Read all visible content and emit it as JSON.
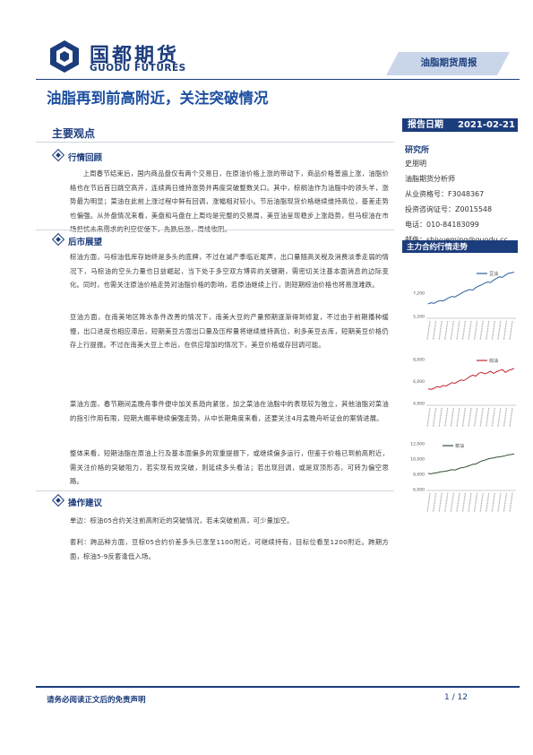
{
  "header": {
    "logo_cn": "国都期货",
    "logo_en": "GUODU FUTURES",
    "report_type": "油脂期货周报",
    "title": "油脂再到前高附近，关注突破情况",
    "date_label": "报告日期",
    "date_value": "2021-02-21"
  },
  "key_points": {
    "heading": "主要观点",
    "sections": [
      {
        "heading": "行情回顾",
        "paragraphs": [
          "上周春节结束后，国内商品盘仅有两个交易日，在原油价格上涨的带动下，商品价格普遍上涨，油脂价格也在节后首日跳空高开，连续两日维持涨势并再度突破整数关口。其中，棕榈油作为油脂中的领头羊，涨势最为明显；菜油在此前上涨过程中鲜有回调，涨幅相对较小。节后油脂现货价格继续维持高位，基差走势也偏强。从外盘情况来看，美盘和马盘在上周均是完整的交易周，美豆油呈现稳步上涨趋势，但马棕油在市场担忧未来需求的利空促使下，先跌后涨，周线收阴。"
        ]
      },
      {
        "heading": "后市展望",
        "paragraphs": [
          "棕油方面，马棕油低库存始终是多头的底牌，不过在减产季临近尾声，出口量随高关税及消费淡季走弱的情况下，马棕油的空头力量也日益崛起，当下处于多空双方博弈的关键期，需密切关注基本面消息的边际变化。同时，也需关注原油价格走势对油脂价格的影响，若原油继续上行，则短期棕油价格也将易涨难跌。",
          "豆油方面，在南美地区降水条件改善的情况下，南美大豆的产量预期逐渐得到修复，不过由于前期播种缓慢，出口进度也相应滞后，短期美豆方面出口量及压榨量将继续维持高位，利多美豆去库，短期美豆价格仍存上行提振。不过在南美大豆上市后，在供应增加的情况下，美豆价格或存回调可能。",
          "菜油方面，春节期间孟晚舟事件便中加关系趋向紧张，加之菜油在油脂中的表现较为独立，其他油脂对菜油的指引作用有限，短期大概率继续偏强走势。从中长期角度来看，还要关注4月孟晚舟听证会的案情进展。",
          "整体来看，短期油脂在原油上行及基本面偏多的双重提振下，或继续偏多运行，但鉴于价格已到前高附近，需关注价格的突破阻力，若实现有效突破，则延续多头看法；若出现回调，或是双顶形态，可转为偏空思路。"
        ]
      },
      {
        "heading": "操作建议",
        "paragraphs": [
          "单边：棕油05合约关注前高附近的突破情况，若未突破前高，可少量加空。",
          "套利：跨品种方面，豆棕05合约价差多头已涨至1100附近，可继续持有，目标位看至1200附近。跨期方面，棕油5-9反套逢低入场。"
        ]
      }
    ]
  },
  "research": {
    "heading": "研究所",
    "lines": [
      "史朋明",
      "油脂期货分析师",
      "从业资格号：F3048367",
      "投资咨询证号：Z0015548",
      "电话：010-84183099",
      "邮件：shiyueming@guodu.cc"
    ]
  },
  "trend": {
    "heading": "主力合约行情走势"
  },
  "chart_data": [
    {
      "type": "line",
      "series": [
        {
          "name": "豆油",
          "values": [
            6250,
            6350,
            6300,
            6450,
            6550,
            6500,
            6650,
            6800,
            6900,
            6850,
            7000,
            7150,
            7300,
            7400,
            7500,
            7450,
            7650,
            7800,
            7900,
            8050,
            8150,
            8100,
            8300,
            8450,
            8600,
            8550,
            8750,
            8900,
            8950,
            9000
          ]
        }
      ],
      "yticks": [
        5200,
        7200
      ],
      "ylim": [
        5000,
        9200
      ],
      "color": "#2e5f9e",
      "legend_position": "top-right"
    },
    {
      "type": "line",
      "series": [
        {
          "name": "棕油",
          "values": [
            5300,
            5250,
            5350,
            5500,
            5450,
            5600,
            5550,
            5700,
            5850,
            5800,
            5950,
            6100,
            6050,
            6200,
            6400,
            6550,
            6450,
            6700,
            6800,
            6650,
            6750,
            6900,
            6700,
            6850,
            6950,
            7050,
            6800,
            6950,
            7050,
            7150
          ]
        }
      ],
      "yticks": [
        4000,
        6000,
        8000
      ],
      "ylim": [
        3800,
        8200
      ],
      "color": "#c0272d",
      "legend_position": "top-right"
    },
    {
      "type": "line",
      "series": [
        {
          "name": "菜油",
          "values": [
            8050,
            8000,
            8100,
            8150,
            8250,
            8300,
            8350,
            8450,
            8550,
            8500,
            8650,
            8800,
            8850,
            8950,
            9100,
            9250,
            9300,
            9500,
            9700,
            9800,
            9950,
            10050,
            10100,
            10200,
            10250,
            10300,
            10400,
            10500,
            10550,
            10650
          ]
        }
      ],
      "yticks": [
        6000,
        8000,
        10000,
        12000
      ],
      "ylim": [
        5800,
        12200
      ],
      "color": "#2f4f2f",
      "legend_position": "top-center"
    }
  ],
  "footer": {
    "disclaimer": "请务必阅读正文后的免责声明",
    "page": "1 / 12"
  }
}
